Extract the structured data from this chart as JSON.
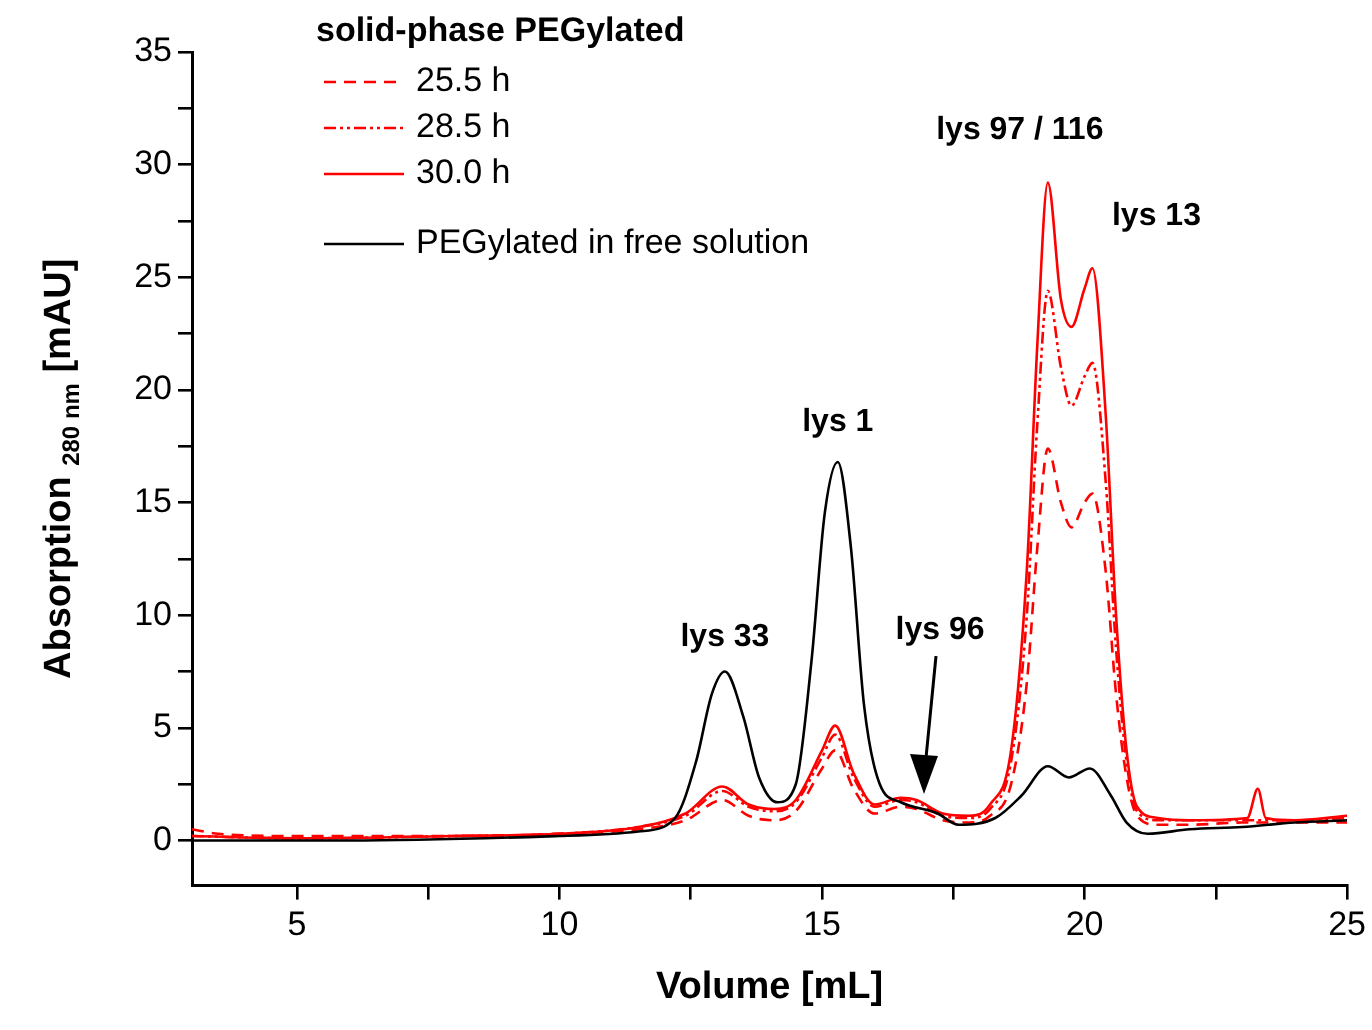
{
  "chart_data": {
    "type": "line",
    "xlabel": "Volume [mL]",
    "ylabel": "Absorption $_{280 nm}$ [mAU]",
    "legend_title": "solid-phase PEGylated",
    "legend": "top left",
    "grid": false,
    "marker": "none",
    "xlim": [
      3,
      25
    ],
    "xticks": [
      5,
      {
        "value": 7.5,
        "label": null
      },
      10,
      {
        "value": 12.5,
        "label": null
      },
      15,
      {
        "value": 17.5,
        "label": null
      },
      20,
      {
        "value": 22.5,
        "label": null
      },
      25
    ],
    "ylim": [
      -2,
      35
    ],
    "yticks": [
      0,
      {
        "value": 2.5,
        "label": null
      },
      5,
      {
        "value": 7.5,
        "label": null
      },
      10,
      {
        "value": 12.5,
        "label": null
      },
      15,
      {
        "value": 17.5,
        "label": null
      },
      20,
      {
        "value": 22.5,
        "label": null
      },
      25,
      {
        "value": 27.5,
        "label": null
      },
      30,
      {
        "value": 32.5,
        "label": null
      },
      35
    ],
    "annotations": [
      {
        "text": "lys 33",
        "x": 13.15,
        "y": 7.5
      },
      {
        "text": "lys 1",
        "x": 15.3,
        "y": 16.8
      },
      "lys 96",
      {
        "text": "lys 97 / 116",
        "x": 19.3,
        "y": 29.2
      },
      {
        "text": "lys 13",
        "x": 20.15,
        "y": 25.4
      }
    ],
    "series": [
      {
        "name": "PEGylated in free solution",
        "color": "#000000",
        "line_style": "solid",
        "x": [
          3,
          6,
          10,
          11.5,
          12.2,
          12.6,
          12.9,
          13.15,
          13.5,
          13.8,
          14.15,
          14.5,
          14.8,
          15.05,
          15.3,
          15.55,
          15.8,
          16.1,
          16.5,
          17.2,
          17.6,
          18.3,
          18.8,
          19.3,
          19.7,
          20.1,
          20.5,
          20.8,
          21.2,
          22,
          23,
          24,
          25
        ],
        "values": [
          0,
          0,
          0.2,
          0.4,
          1,
          3.5,
          6.5,
          7.5,
          5.5,
          2.8,
          1.7,
          2.5,
          8,
          14.5,
          16.8,
          13,
          6,
          2.5,
          1.7,
          1.2,
          0.7,
          1,
          2,
          3.3,
          2.8,
          3.2,
          2,
          0.8,
          0.3,
          0.5,
          0.6,
          0.8,
          0.9
        ]
      },
      {
        "name": "25.5 h",
        "color": "#ff0000",
        "line_style": "dashed",
        "x": [
          3,
          3.5,
          5,
          8,
          10,
          11.5,
          12.4,
          13.1,
          13.6,
          14.1,
          14.5,
          15,
          15.25,
          15.6,
          16,
          16.5,
          16.8,
          17.3,
          17.8,
          18.2,
          18.6,
          18.9,
          19.1,
          19.3,
          19.55,
          19.75,
          20,
          20.15,
          20.4,
          20.6,
          20.8,
          21,
          21.4,
          22,
          23,
          24,
          25
        ],
        "values": [
          0.5,
          0.3,
          0.2,
          0.2,
          0.3,
          0.5,
          0.9,
          1.8,
          1.1,
          0.9,
          1.3,
          3.2,
          4,
          2.3,
          1.2,
          1.5,
          1.4,
          0.9,
          0.8,
          1.1,
          2.5,
          7,
          13,
          17.4,
          15,
          13.9,
          15,
          15.4,
          12,
          6.5,
          2.8,
          1.1,
          0.7,
          0.7,
          0.8,
          0.8,
          0.8
        ]
      },
      {
        "name": "28.5 h",
        "color": "#ff0000",
        "line_style": "dashdot",
        "x": [
          3,
          5,
          8,
          10,
          11.5,
          12.4,
          13.1,
          13.6,
          14.1,
          14.5,
          15,
          15.25,
          15.6,
          16,
          16.5,
          16.8,
          17.3,
          17.8,
          18.2,
          18.6,
          18.9,
          19.1,
          19.3,
          19.55,
          19.75,
          20,
          20.15,
          20.4,
          20.6,
          20.8,
          21,
          21.4,
          22,
          23,
          24,
          25
        ],
        "values": [
          0.2,
          0.1,
          0.2,
          0.3,
          0.6,
          1.1,
          2.2,
          1.5,
          1.3,
          1.7,
          3.7,
          4.7,
          2.8,
          1.5,
          1.8,
          1.7,
          1.1,
          1,
          1.4,
          3.5,
          10,
          18.5,
          24.4,
          21,
          19.3,
          20.6,
          21.2,
          16,
          8.5,
          3.5,
          1.3,
          0.9,
          0.9,
          0.9,
          0.9,
          1
        ]
      },
      {
        "name": "30.0 h",
        "color": "#ff0000",
        "line_style": "solid",
        "x": [
          3,
          5,
          8,
          10,
          11.5,
          12.4,
          13.1,
          13.6,
          14.1,
          14.5,
          15,
          15.25,
          15.6,
          16,
          16.5,
          16.8,
          17.3,
          17.8,
          18.2,
          18.6,
          18.9,
          19.1,
          19.3,
          19.55,
          19.75,
          20,
          20.15,
          20.4,
          20.6,
          20.8,
          21,
          21.4,
          22,
          23.1,
          23.3,
          23.45,
          24,
          25
        ],
        "values": [
          0.2,
          0.1,
          0.2,
          0.3,
          0.6,
          1.2,
          2.4,
          1.6,
          1.4,
          1.8,
          4,
          5.1,
          3,
          1.6,
          1.9,
          1.8,
          1.2,
          1.1,
          1.6,
          4,
          12,
          22,
          29.2,
          24,
          22.8,
          24.5,
          25.4,
          19,
          10,
          4,
          1.5,
          1,
          0.9,
          1,
          2.3,
          1,
          0.9,
          1.1
        ]
      }
    ]
  }
}
